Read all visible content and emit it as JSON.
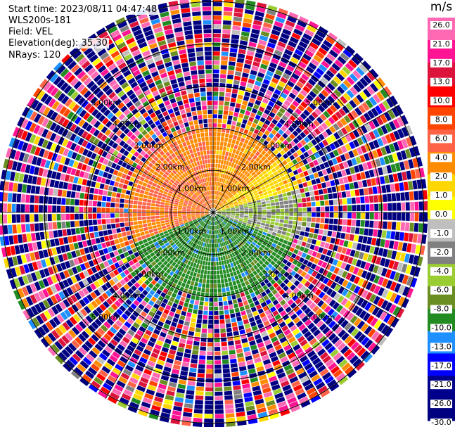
{
  "header": {
    "start_time": "Start time: 2023/08/11 04:47:48",
    "instrument": "WLS200s-181",
    "field": "Field: VEL",
    "elevation": "Elevation(deg): 35.30",
    "nrays": "NRays: 120"
  },
  "colorbar": {
    "unit": "m/s",
    "colors": [
      "#ff69b4",
      "#ff1493",
      "#dc143c",
      "#ff0000",
      "#ff4500",
      "#ff6347",
      "#ff8c00",
      "#ffd700",
      "#ffff00",
      "#bfbfbf",
      "#808080",
      "#9acd32",
      "#6b8e23",
      "#228b22",
      "#1e90ff",
      "#0000ff",
      "#00008b",
      "#000080"
    ],
    "ticks": [
      "26.0",
      "21.0",
      "17.0",
      "13.0",
      "10.0",
      "8.0",
      "6.0",
      "4.0",
      "2.0",
      "1.0",
      "0.0",
      "-1.0",
      "-2.0",
      "-4.0",
      "-6.0",
      "-8.0",
      "-10.0",
      "-13.0",
      "-17.0",
      "-21.0",
      "-26.0",
      "-30.0"
    ]
  },
  "chart_data": {
    "type": "heatmap",
    "projection": "polar PPI",
    "field": "VEL",
    "nrays": 120,
    "range_rings_km": [
      1.0,
      2.0,
      3.0,
      4.0,
      5.0
    ],
    "ring_labels": [
      "1.00km",
      "2.00km",
      "3.00km",
      "4.00km",
      "5.00km"
    ],
    "velocity_range_ms": [
      -30,
      26
    ],
    "sectors": [
      {
        "azimuth_from_deg": 250,
        "azimuth_to_deg": 360,
        "dominant_velocity_ms": 6
      },
      {
        "azimuth_from_deg": 0,
        "azimuth_to_deg": 50,
        "dominant_velocity_ms": 5
      },
      {
        "azimuth_from_deg": 50,
        "azimuth_to_deg": 75,
        "dominant_velocity_ms": 3
      },
      {
        "azimuth_from_deg": 75,
        "azimuth_to_deg": 110,
        "dominant_velocity_ms": -1
      },
      {
        "azimuth_from_deg": 110,
        "azimuth_to_deg": 250,
        "dominant_velocity_ms": -5
      }
    ]
  }
}
